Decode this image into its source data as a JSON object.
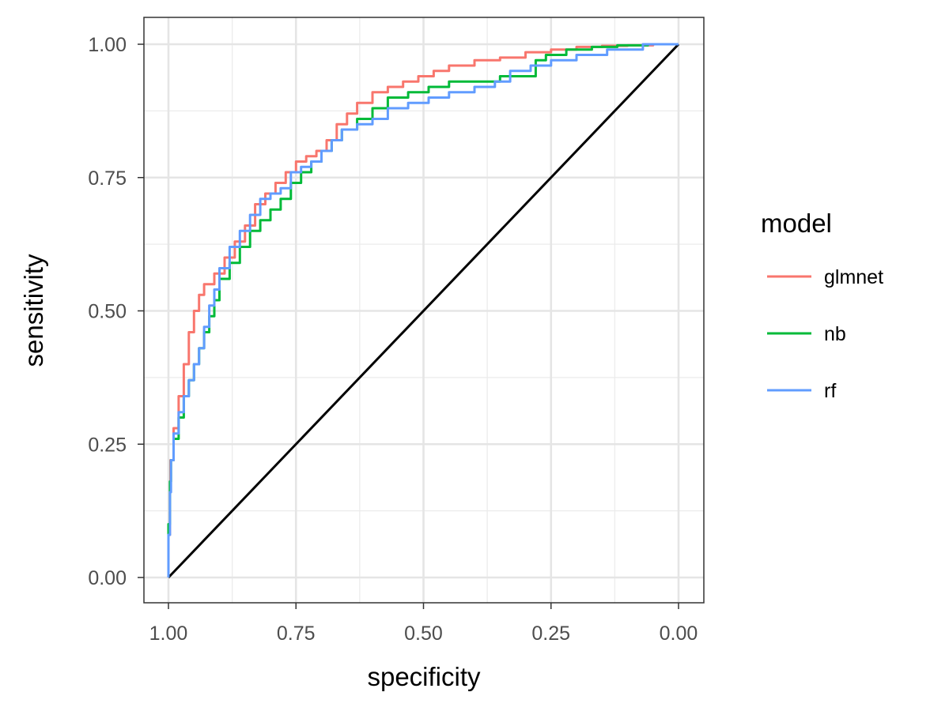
{
  "chart_data": {
    "type": "line",
    "title": "",
    "xlabel": "specificity",
    "ylabel": "sensitivity",
    "xlim": [
      1.0,
      0.0
    ],
    "ylim": [
      0.0,
      1.0
    ],
    "x_reversed": true,
    "x_ticks": [
      "1.00",
      "0.75",
      "0.50",
      "0.25",
      "0.00"
    ],
    "y_ticks": [
      "0.00",
      "0.25",
      "0.50",
      "0.75",
      "1.00"
    ],
    "grid": true,
    "legend": {
      "title": "model",
      "position": "right"
    },
    "series": [
      {
        "name": "glmnet",
        "color": "#F8766D",
        "points": [
          [
            1.0,
            0.0
          ],
          [
            0.997,
            0.08
          ],
          [
            0.996,
            0.16
          ],
          [
            0.99,
            0.22
          ],
          [
            0.98,
            0.28
          ],
          [
            0.97,
            0.34
          ],
          [
            0.96,
            0.4
          ],
          [
            0.95,
            0.46
          ],
          [
            0.94,
            0.5
          ],
          [
            0.93,
            0.53
          ],
          [
            0.91,
            0.55
          ],
          [
            0.89,
            0.57
          ],
          [
            0.87,
            0.6
          ],
          [
            0.85,
            0.63
          ],
          [
            0.83,
            0.66
          ],
          [
            0.81,
            0.7
          ],
          [
            0.79,
            0.72
          ],
          [
            0.77,
            0.74
          ],
          [
            0.75,
            0.76
          ],
          [
            0.73,
            0.78
          ],
          [
            0.71,
            0.79
          ],
          [
            0.69,
            0.8
          ],
          [
            0.67,
            0.82
          ],
          [
            0.65,
            0.85
          ],
          [
            0.63,
            0.87
          ],
          [
            0.6,
            0.89
          ],
          [
            0.57,
            0.91
          ],
          [
            0.54,
            0.92
          ],
          [
            0.51,
            0.93
          ],
          [
            0.48,
            0.94
          ],
          [
            0.45,
            0.95
          ],
          [
            0.4,
            0.96
          ],
          [
            0.35,
            0.97
          ],
          [
            0.3,
            0.975
          ],
          [
            0.25,
            0.985
          ],
          [
            0.2,
            0.99
          ],
          [
            0.15,
            0.995
          ],
          [
            0.1,
            0.997
          ],
          [
            0.05,
            0.998
          ],
          [
            0.0,
            1.0
          ]
        ]
      },
      {
        "name": "nb",
        "color": "#00BA38",
        "points": [
          [
            1.0,
            0.0
          ],
          [
            0.997,
            0.1
          ],
          [
            0.995,
            0.18
          ],
          [
            0.99,
            0.22
          ],
          [
            0.98,
            0.26
          ],
          [
            0.97,
            0.3
          ],
          [
            0.96,
            0.34
          ],
          [
            0.95,
            0.37
          ],
          [
            0.94,
            0.4
          ],
          [
            0.93,
            0.43
          ],
          [
            0.92,
            0.46
          ],
          [
            0.91,
            0.49
          ],
          [
            0.9,
            0.52
          ],
          [
            0.88,
            0.56
          ],
          [
            0.86,
            0.59
          ],
          [
            0.84,
            0.62
          ],
          [
            0.82,
            0.65
          ],
          [
            0.8,
            0.67
          ],
          [
            0.78,
            0.69
          ],
          [
            0.76,
            0.71
          ],
          [
            0.74,
            0.74
          ],
          [
            0.72,
            0.76
          ],
          [
            0.7,
            0.78
          ],
          [
            0.68,
            0.8
          ],
          [
            0.66,
            0.82
          ],
          [
            0.63,
            0.84
          ],
          [
            0.6,
            0.86
          ],
          [
            0.57,
            0.88
          ],
          [
            0.53,
            0.9
          ],
          [
            0.49,
            0.91
          ],
          [
            0.45,
            0.92
          ],
          [
            0.4,
            0.93
          ],
          [
            0.35,
            0.93
          ],
          [
            0.28,
            0.94
          ],
          [
            0.26,
            0.97
          ],
          [
            0.22,
            0.98
          ],
          [
            0.17,
            0.99
          ],
          [
            0.12,
            0.995
          ],
          [
            0.06,
            0.998
          ],
          [
            0.0,
            1.0
          ]
        ]
      },
      {
        "name": "rf",
        "color": "#619CFF",
        "points": [
          [
            1.0,
            0.0
          ],
          [
            0.997,
            0.08
          ],
          [
            0.995,
            0.16
          ],
          [
            0.99,
            0.22
          ],
          [
            0.98,
            0.27
          ],
          [
            0.97,
            0.31
          ],
          [
            0.96,
            0.34
          ],
          [
            0.95,
            0.37
          ],
          [
            0.94,
            0.4
          ],
          [
            0.93,
            0.43
          ],
          [
            0.92,
            0.47
          ],
          [
            0.91,
            0.51
          ],
          [
            0.9,
            0.54
          ],
          [
            0.88,
            0.58
          ],
          [
            0.86,
            0.62
          ],
          [
            0.84,
            0.65
          ],
          [
            0.82,
            0.68
          ],
          [
            0.8,
            0.71
          ],
          [
            0.78,
            0.72
          ],
          [
            0.76,
            0.73
          ],
          [
            0.74,
            0.76
          ],
          [
            0.72,
            0.77
          ],
          [
            0.7,
            0.78
          ],
          [
            0.68,
            0.8
          ],
          [
            0.66,
            0.82
          ],
          [
            0.63,
            0.84
          ],
          [
            0.6,
            0.85
          ],
          [
            0.57,
            0.86
          ],
          [
            0.53,
            0.88
          ],
          [
            0.49,
            0.89
          ],
          [
            0.45,
            0.9
          ],
          [
            0.4,
            0.91
          ],
          [
            0.36,
            0.92
          ],
          [
            0.33,
            0.93
          ],
          [
            0.29,
            0.95
          ],
          [
            0.25,
            0.96
          ],
          [
            0.2,
            0.97
          ],
          [
            0.14,
            0.98
          ],
          [
            0.07,
            0.99
          ],
          [
            0.0,
            1.0
          ]
        ]
      }
    ],
    "reference_line": {
      "color": "#000000",
      "points": [
        [
          1.0,
          0.0
        ],
        [
          0.0,
          1.0
        ]
      ]
    }
  }
}
